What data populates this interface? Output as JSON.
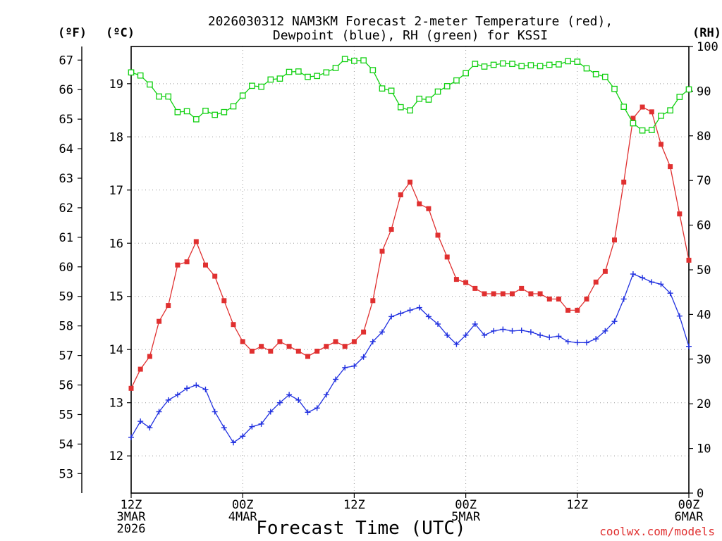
{
  "chart_data": {
    "type": "line",
    "title_line1": "2026030312 NAM3KM Forecast 2-meter Temperature (red),",
    "title_line2": "Dewpoint (blue), RH (green) for KSSI",
    "xlabel": "Forecast Time (UTC)",
    "credit": "coolwx.com/models",
    "unit_left_f": "(ºF)",
    "unit_left_c": "(ºC)",
    "unit_right": "(RH)",
    "x_range_hours": [
      0,
      36
    ],
    "c_range": [
      11.3,
      19.7
    ],
    "rh_range": [
      0,
      100
    ],
    "f_ticks": [
      "53",
      "54",
      "55",
      "56",
      "57",
      "58",
      "59",
      "60",
      "61",
      "62",
      "63",
      "64",
      "65",
      "66",
      "67"
    ],
    "c_ticks": [
      "12",
      "13",
      "14",
      "15",
      "16",
      "17",
      "18",
      "19"
    ],
    "rh_ticks": [
      "0",
      "10",
      "20",
      "30",
      "40",
      "50",
      "60",
      "70",
      "80",
      "90",
      "100"
    ],
    "x_ticks": [
      {
        "hour": 0,
        "lines": [
          "12Z",
          "3MAR",
          "2026"
        ]
      },
      {
        "hour": 7.2,
        "lines": [
          "00Z",
          "4MAR"
        ]
      },
      {
        "hour": 14.4,
        "lines": [
          "12Z"
        ]
      },
      {
        "hour": 21.6,
        "lines": [
          "00Z",
          "5MAR"
        ]
      },
      {
        "hour": 28.8,
        "lines": [
          "12Z"
        ]
      },
      {
        "hour": 36,
        "lines": [
          "00Z",
          "6MAR"
        ]
      }
    ],
    "series": [
      {
        "name": "2-meter Temperature",
        "color": "#e03030",
        "marker": "square-filled",
        "units": "°C",
        "values": [
          13.27,
          13.63,
          13.87,
          14.53,
          14.83,
          15.59,
          15.65,
          16.03,
          15.59,
          15.38,
          14.92,
          14.47,
          14.15,
          13.97,
          14.06,
          13.97,
          14.15,
          14.06,
          13.97,
          13.87,
          13.97,
          14.06,
          14.15,
          14.06,
          14.15,
          14.33,
          14.92,
          15.85,
          16.26,
          16.91,
          17.15,
          16.74,
          16.65,
          16.15,
          15.74,
          15.32,
          15.26,
          15.15,
          15.05,
          15.05,
          15.05,
          15.05,
          15.15,
          15.05,
          15.05,
          14.95,
          14.95,
          14.74,
          14.74,
          14.95,
          15.27,
          15.47,
          16.06,
          17.15,
          18.35,
          18.56,
          18.47,
          17.86,
          17.44,
          16.55,
          15.68
        ]
      },
      {
        "name": "Dewpoint",
        "color": "#2030e0",
        "marker": "plus",
        "units": "°C",
        "values": [
          12.35,
          12.65,
          12.53,
          12.83,
          13.05,
          13.15,
          13.27,
          13.33,
          13.25,
          12.83,
          12.53,
          12.25,
          12.37,
          12.55,
          12.6,
          12.83,
          13.0,
          13.15,
          13.05,
          12.82,
          12.9,
          13.15,
          13.44,
          13.66,
          13.69,
          13.86,
          14.15,
          14.33,
          14.62,
          14.68,
          14.74,
          14.79,
          14.62,
          14.48,
          14.27,
          14.1,
          14.27,
          14.48,
          14.27,
          14.35,
          14.38,
          14.35,
          14.36,
          14.33,
          14.27,
          14.23,
          14.25,
          14.15,
          14.13,
          14.13,
          14.2,
          14.35,
          14.53,
          14.95,
          15.42,
          15.35,
          15.27,
          15.23,
          15.06,
          14.63,
          14.06
        ]
      },
      {
        "name": "RH",
        "color": "#10d010",
        "marker": "square-open",
        "units": "%",
        "values": [
          94.2,
          93.5,
          91.5,
          88.8,
          88.8,
          85.3,
          85.5,
          83.7,
          85.6,
          84.7,
          85.3,
          86.6,
          89.0,
          91.2,
          91.0,
          92.6,
          92.8,
          94.3,
          94.4,
          93.2,
          93.4,
          94.2,
          95.2,
          97.2,
          96.8,
          96.9,
          94.7,
          90.6,
          90.1,
          86.4,
          85.7,
          88.3,
          88.1,
          89.9,
          91.1,
          92.4,
          94.0,
          96.1,
          95.5,
          95.9,
          96.2,
          96.1,
          95.6,
          95.8,
          95.6,
          95.9,
          96.0,
          96.7,
          96.6,
          95.1,
          93.8,
          93.2,
          90.5,
          86.5,
          82.8,
          81.2,
          81.3,
          84.5,
          85.7,
          88.7,
          90.4
        ]
      }
    ]
  }
}
